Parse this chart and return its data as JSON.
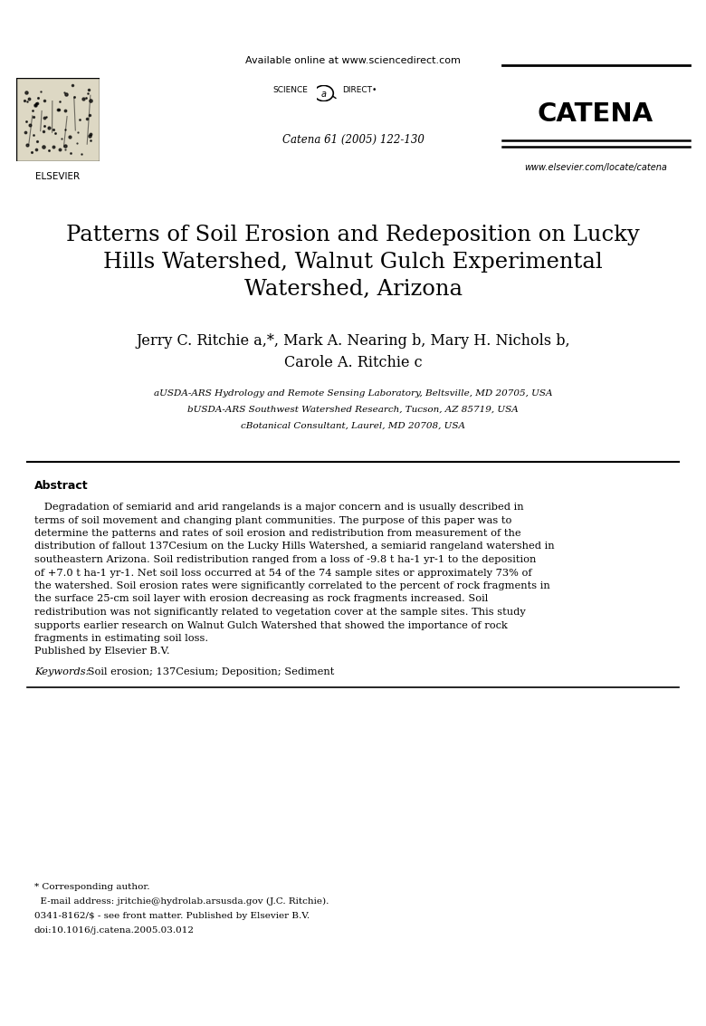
{
  "bg_color": "#ffffff",
  "header": {
    "available_online": "Available online at www.sciencedirect.com",
    "science_text": "SCIENCE",
    "direct_text": "DIRECT",
    "journal_ref": "Catena 61 (2005) 122-130",
    "journal_name": "CATENA",
    "journal_url": "www.elsevier.com/locate/catena",
    "elsevier_text": "ELSEVIER"
  },
  "title": "Patterns of Soil Erosion and Redeposition on Lucky\nHills Watershed, Walnut Gulch Experimental\nWatershed, Arizona",
  "authors_line1": "Jerry C. Ritchie a,*, Mark A. Nearing b, Mary H. Nichols b,",
  "authors_line2": "Carole A. Ritchie c",
  "affiliations": [
    "aUSDA-ARS Hydrology and Remote Sensing Laboratory, Beltsville, MD 20705, USA",
    "bUSDA-ARS Southwest Watershed Research, Tucson, AZ 85719, USA",
    "cBotanical Consultant, Laurel, MD 20708, USA"
  ],
  "abstract_title": "Abstract",
  "abstract_lines": [
    "   Degradation of semiarid and arid rangelands is a major concern and is usually described in",
    "terms of soil movement and changing plant communities. The purpose of this paper was to",
    "determine the patterns and rates of soil erosion and redistribution from measurement of the",
    "distribution of fallout 137Cesium on the Lucky Hills Watershed, a semiarid rangeland watershed in",
    "southeastern Arizona. Soil redistribution ranged from a loss of -9.8 t ha-1 yr-1 to the deposition",
    "of +7.0 t ha-1 yr-1. Net soil loss occurred at 54 of the 74 sample sites or approximately 73% of",
    "the watershed. Soil erosion rates were significantly correlated to the percent of rock fragments in",
    "the surface 25-cm soil layer with erosion decreasing as rock fragments increased. Soil",
    "redistribution was not significantly related to vegetation cover at the sample sites. This study",
    "supports earlier research on Walnut Gulch Watershed that showed the importance of rock",
    "fragments in estimating soil loss.",
    "Published by Elsevier B.V."
  ],
  "keywords_label": "Keywords:",
  "keywords_text": " Soil erosion; 137Cesium; Deposition; Sediment",
  "footnotes": [
    "* Corresponding author.",
    "  E-mail address: jritchie@hydrolab.arsusda.gov (J.C. Ritchie).",
    "0341-8162/$ - see front matter. Published by Elsevier B.V.",
    "doi:10.1016/j.catena.2005.03.012"
  ]
}
